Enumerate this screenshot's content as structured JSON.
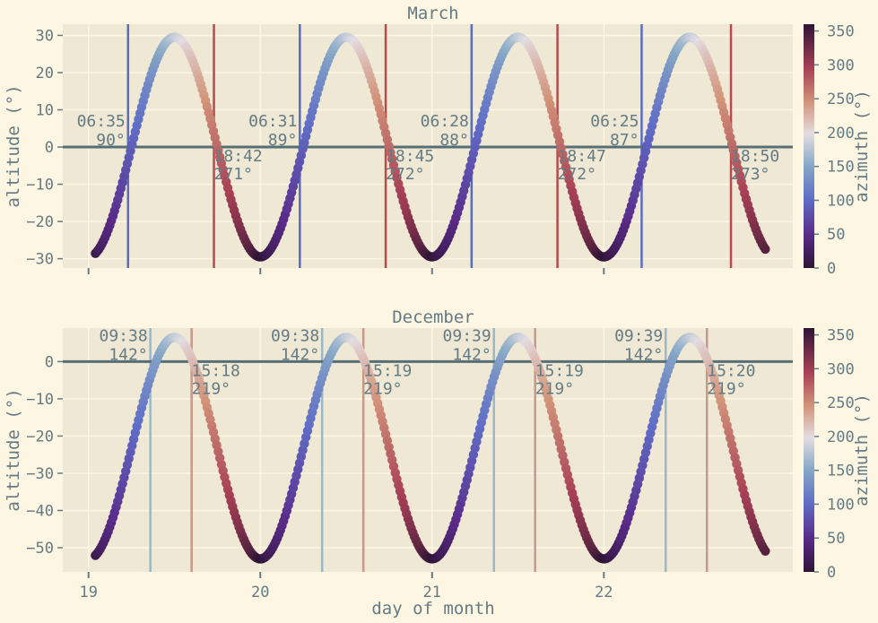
{
  "chart_data": [
    {
      "type": "scatter",
      "title": "March",
      "xlabel": "",
      "ylabel": "altitude (°)",
      "colorbar_label": "azimuth (°)",
      "colorbar_ticks": [
        0,
        50,
        100,
        150,
        200,
        250,
        300,
        350
      ],
      "colorbar_range": [
        0,
        360
      ],
      "xlim": [
        18.85,
        23.1
      ],
      "ylim": [
        -32.5,
        33
      ],
      "yticks": [
        -30,
        -20,
        -10,
        0,
        10,
        20,
        30
      ],
      "xticks": [
        19,
        20,
        21,
        22
      ],
      "xticklabels_visible": false,
      "curve": {
        "start_day": 19.04,
        "end_day": 22.94,
        "amplitude": 29.5,
        "peak_day_fraction": 0.5
      },
      "horizon": 0,
      "events": [
        {
          "kind": "sunrise",
          "day": 19.23,
          "time": "06:35",
          "azimuth": "90°"
        },
        {
          "kind": "sunset",
          "day": 19.73,
          "time": "18:42",
          "azimuth": "271°"
        },
        {
          "kind": "sunrise",
          "day": 20.23,
          "time": "06:31",
          "azimuth": "89°"
        },
        {
          "kind": "sunset",
          "day": 20.73,
          "time": "18:45",
          "azimuth": "272°"
        },
        {
          "kind": "sunrise",
          "day": 21.23,
          "time": "06:28",
          "azimuth": "88°"
        },
        {
          "kind": "sunset",
          "day": 21.73,
          "time": "18:47",
          "azimuth": "272°"
        },
        {
          "kind": "sunrise",
          "day": 22.22,
          "time": "06:25",
          "azimuth": "87°"
        },
        {
          "kind": "sunset",
          "day": 22.74,
          "time": "18:50",
          "azimuth": "273°"
        }
      ]
    },
    {
      "type": "scatter",
      "title": "December",
      "xlabel": "day of month",
      "ylabel": "altitude (°)",
      "colorbar_label": "azimuth (°)",
      "colorbar_ticks": [
        0,
        50,
        100,
        150,
        200,
        250,
        300,
        350
      ],
      "colorbar_range": [
        0,
        360
      ],
      "xlim": [
        18.85,
        23.1
      ],
      "ylim": [
        -56.5,
        9
      ],
      "yticks": [
        -50,
        -40,
        -30,
        -20,
        -10,
        0
      ],
      "xticks": [
        19,
        20,
        21,
        22
      ],
      "xticklabels_visible": true,
      "curve": {
        "start_day": 19.04,
        "end_day": 22.94,
        "amplitude": 6.5,
        "trough": -53,
        "peak_day_fraction": 0.5
      },
      "horizon": 0,
      "events": [
        {
          "kind": "sunrise",
          "day": 19.36,
          "time": "09:38",
          "azimuth": "142°"
        },
        {
          "kind": "sunset",
          "day": 19.6,
          "time": "15:18",
          "azimuth": "219°"
        },
        {
          "kind": "sunrise",
          "day": 20.36,
          "time": "09:38",
          "azimuth": "142°"
        },
        {
          "kind": "sunset",
          "day": 20.6,
          "time": "15:19",
          "azimuth": "219°"
        },
        {
          "kind": "sunrise",
          "day": 21.36,
          "time": "09:39",
          "azimuth": "142°"
        },
        {
          "kind": "sunset",
          "day": 21.6,
          "time": "15:19",
          "azimuth": "219°"
        },
        {
          "kind": "sunrise",
          "day": 22.36,
          "time": "09:39",
          "azimuth": "142°"
        },
        {
          "kind": "sunset",
          "day": 22.6,
          "time": "15:20",
          "azimuth": "219°"
        }
      ]
    }
  ],
  "colors": {
    "background": "#fdf6e3",
    "plot_bg": "#eee8d5",
    "grid": "#fdf6e3",
    "text": "#657b83",
    "horizon": "#586e75",
    "sunrise_march": "#5a6cc0",
    "sunset_march": "#b84a4a",
    "sunrise_december": "#9cb8c4",
    "sunset_december": "#c8998a"
  }
}
